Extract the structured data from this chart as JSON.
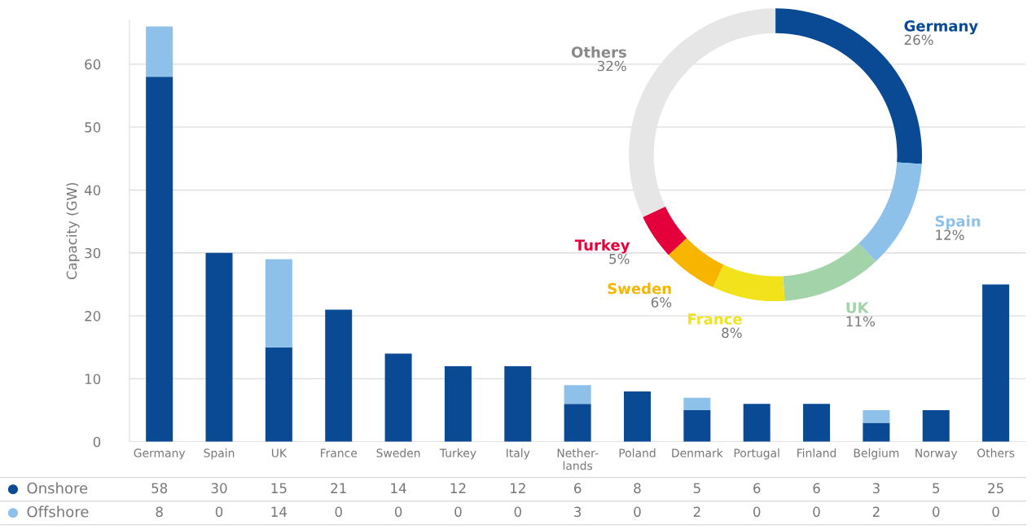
{
  "chart_data": [
    {
      "type": "bar",
      "stacked": true,
      "ylabel": "Capacity (GW)",
      "categories": [
        "Germany",
        "Spain",
        "UK",
        "France",
        "Sweden",
        "Turkey",
        "Italy",
        "Nether-\nlands",
        "Poland",
        "Denmark",
        "Portugal",
        "Finland",
        "Belgium",
        "Norway",
        "Others"
      ],
      "series": [
        {
          "name": "Onshore",
          "color": "#0a4a94",
          "values": [
            58,
            30,
            15,
            21,
            14,
            12,
            12,
            6,
            8,
            5,
            6,
            6,
            3,
            5,
            25
          ]
        },
        {
          "name": "Offshore",
          "color": "#8ec1ea",
          "values": [
            8,
            0,
            14,
            0,
            0,
            0,
            0,
            3,
            0,
            2,
            0,
            0,
            2,
            0,
            0
          ]
        }
      ],
      "ylim": [
        0,
        67
      ],
      "yticks": [
        0,
        10,
        20,
        30,
        40,
        50,
        60
      ],
      "grid": "y",
      "legend": "bottom",
      "data_labels": true
    },
    {
      "type": "donut",
      "categories": [
        "Germany",
        "Spain",
        "UK",
        "France",
        "Sweden",
        "Turkey",
        "Others"
      ],
      "values": [
        26,
        12,
        11,
        8,
        6,
        5,
        32
      ],
      "value_labels": [
        "26%",
        "12%",
        "11%",
        "8%",
        "6%",
        "5%",
        "32%"
      ],
      "colors": [
        "#0a4a94",
        "#8ec1ea",
        "#a3d3a8",
        "#f2e21c",
        "#f7b500",
        "#e4003a",
        "#e6e6e6"
      ]
    }
  ]
}
